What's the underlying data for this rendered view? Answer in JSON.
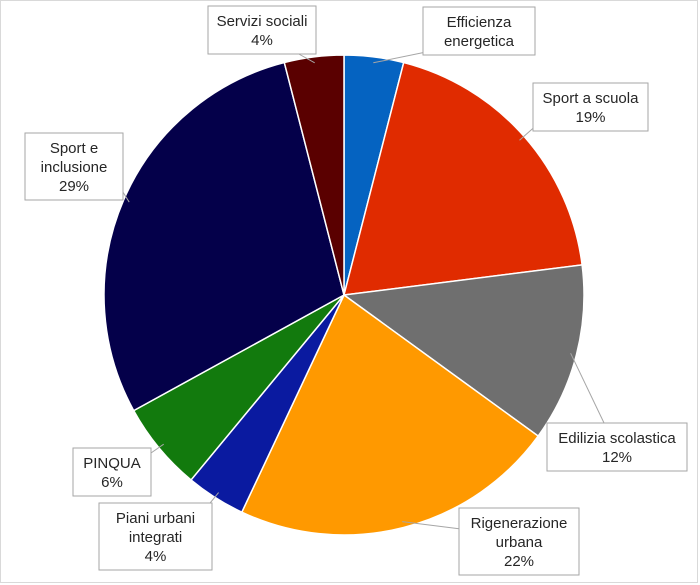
{
  "chart_data": {
    "type": "pie",
    "title": "",
    "legend": "none",
    "slices": [
      {
        "label": "Efficienza energetica",
        "pct_label": "",
        "value": 4,
        "color": "#0563c1"
      },
      {
        "label": "Sport a scuola",
        "pct_label": "19%",
        "value": 19,
        "color": "#e02b00"
      },
      {
        "label": "Edilizia scolastica",
        "pct_label": "12%",
        "value": 12,
        "color": "#6f6f6f"
      },
      {
        "label": "Rigenerazione urbana",
        "pct_label": "22%",
        "value": 22,
        "color": "#ff9900"
      },
      {
        "label": "Piani urbani integrati",
        "pct_label": "4%",
        "value": 4,
        "color": "#0a1aa0"
      },
      {
        "label": "PINQUA",
        "pct_label": "6%",
        "value": 6,
        "color": "#127a0d"
      },
      {
        "label": "Sport e inclusione",
        "pct_label": "29%",
        "value": 29,
        "color": "#04004a"
      },
      {
        "label": "Servizi sociali",
        "pct_label": "4%",
        "value": 4,
        "color": "#5a0000"
      }
    ]
  }
}
